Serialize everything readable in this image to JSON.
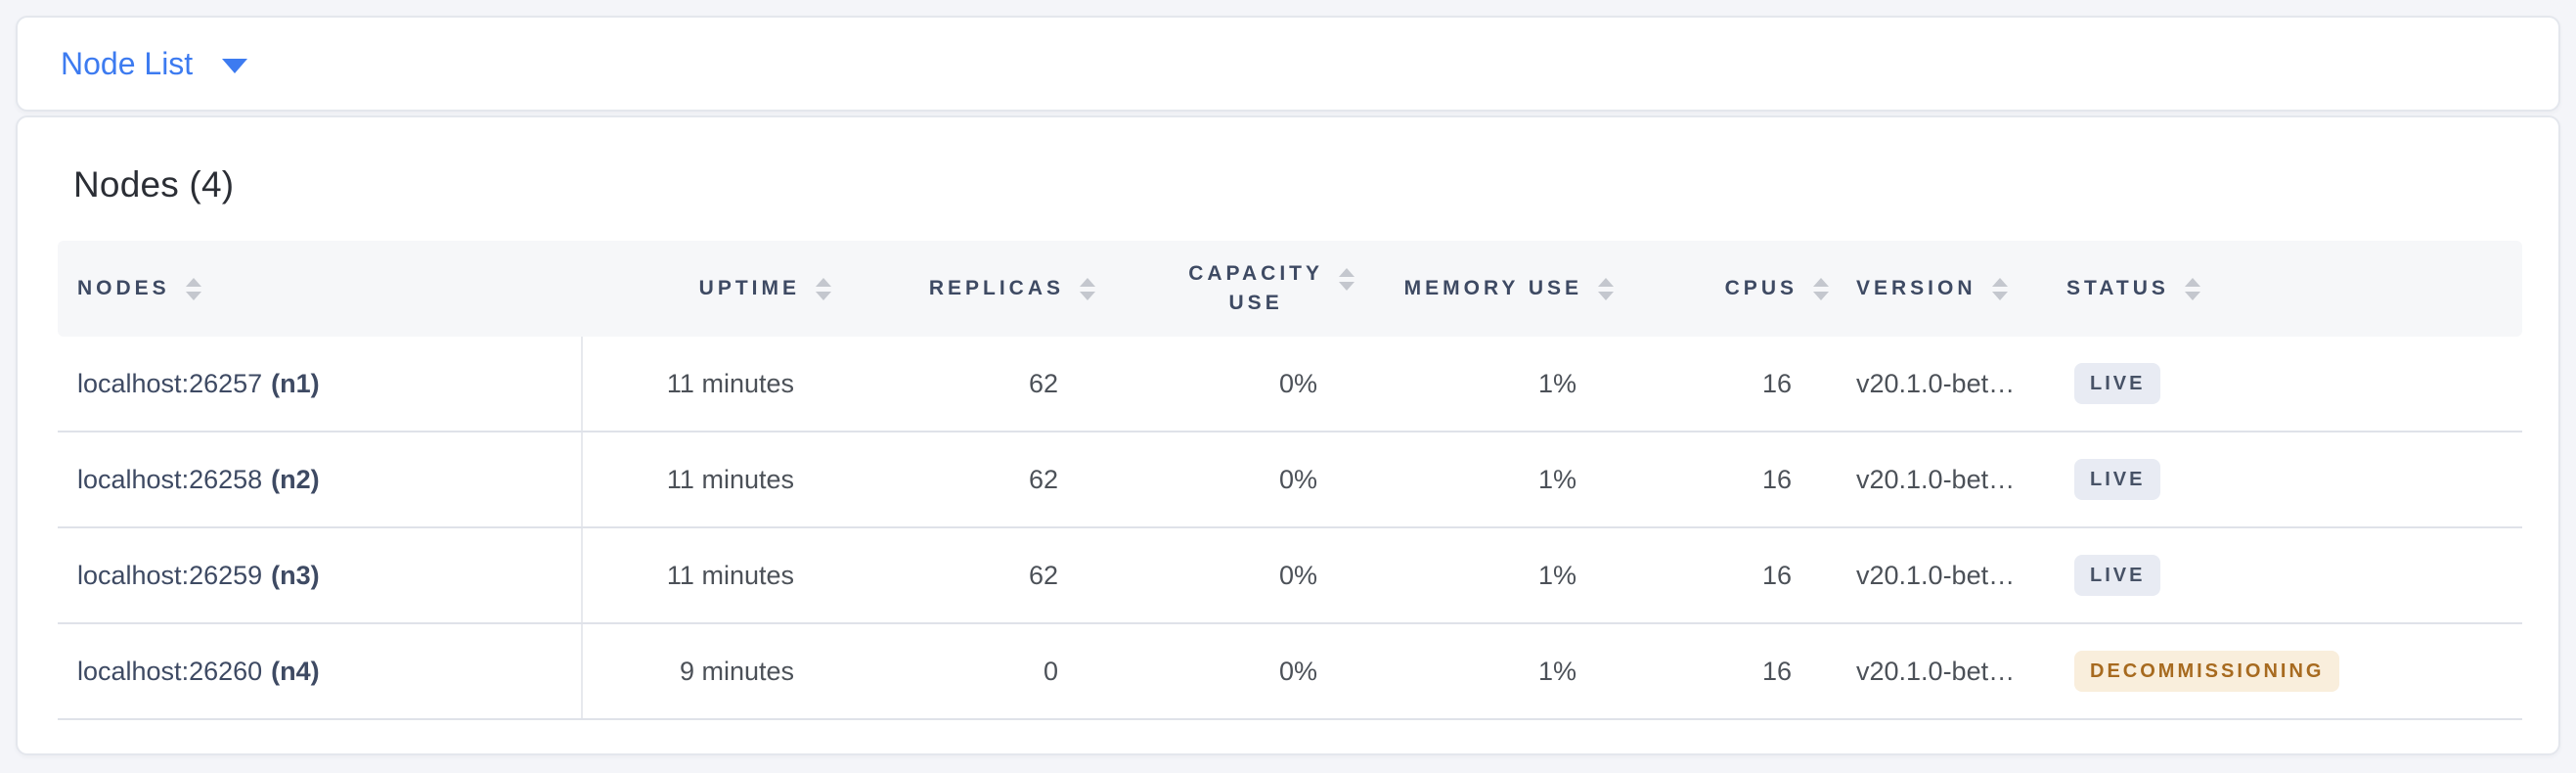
{
  "view_selector": {
    "label": "Node List"
  },
  "summary": {
    "title": "Nodes (4)"
  },
  "table": {
    "columns": {
      "nodes": {
        "label": "NODES"
      },
      "uptime": {
        "label": "UPTIME"
      },
      "replicas": {
        "label": "REPLICAS"
      },
      "capacity": {
        "line1": "CAPACITY",
        "line2": "USE"
      },
      "memory": {
        "label": "MEMORY USE"
      },
      "cpus": {
        "label": "CPUS"
      },
      "version": {
        "label": "VERSION"
      },
      "status": {
        "label": "STATUS"
      }
    },
    "rows": [
      {
        "address": "localhost:26257",
        "id": "(n1)",
        "uptime": "11 minutes",
        "replicas": "62",
        "capacity": "0%",
        "memory": "1%",
        "cpus": "16",
        "version": "v20.1.0-bet…",
        "status": "LIVE",
        "status_type": "live"
      },
      {
        "address": "localhost:26258",
        "id": "(n2)",
        "uptime": "11 minutes",
        "replicas": "62",
        "capacity": "0%",
        "memory": "1%",
        "cpus": "16",
        "version": "v20.1.0-bet…",
        "status": "LIVE",
        "status_type": "live"
      },
      {
        "address": "localhost:26259",
        "id": "(n3)",
        "uptime": "11 minutes",
        "replicas": "62",
        "capacity": "0%",
        "memory": "1%",
        "cpus": "16",
        "version": "v20.1.0-bet…",
        "status": "LIVE",
        "status_type": "live"
      },
      {
        "address": "localhost:26260",
        "id": "(n4)",
        "uptime": "9 minutes",
        "replicas": "0",
        "capacity": "0%",
        "memory": "1%",
        "cpus": "16",
        "version": "v20.1.0-bet…",
        "status": "DECOMMISSIONING",
        "status_type": "decommissioning"
      }
    ],
    "colors": {
      "accent_blue": "#3d7bf0",
      "header_text": "#3e4a63",
      "live_badge_bg": "#e8ebf3",
      "live_badge_text": "#475266",
      "decommissioning_badge_bg": "#f9eedc",
      "decommissioning_badge_text": "#a76a1f"
    }
  }
}
